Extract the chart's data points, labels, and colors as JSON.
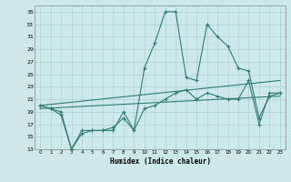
{
  "xlabel": "Humidex (Indice chaleur)",
  "bg_color": "#cce8e8",
  "grid_color": "#b0d0d0",
  "line_color": "#2e7d6e",
  "xlim": [
    -0.5,
    23.5
  ],
  "ylim": [
    13,
    36
  ],
  "yticks": [
    13,
    15,
    17,
    19,
    21,
    23,
    25,
    27,
    29,
    31,
    33,
    35
  ],
  "xticks": [
    0,
    1,
    2,
    3,
    4,
    5,
    6,
    7,
    8,
    9,
    10,
    11,
    12,
    13,
    14,
    15,
    16,
    17,
    18,
    19,
    20,
    21,
    22,
    23
  ],
  "series_main_x": [
    0,
    1,
    2,
    3,
    4,
    5,
    6,
    7,
    8,
    9,
    10,
    11,
    12,
    13,
    14,
    15,
    16,
    17,
    18,
    19,
    20,
    21,
    22,
    23
  ],
  "series_main_y": [
    20,
    19.5,
    18.5,
    13,
    16,
    16,
    16,
    16,
    19,
    16,
    26,
    30,
    35,
    35,
    24.5,
    24,
    33,
    31,
    29.5,
    26,
    25.5,
    18,
    21.5,
    22
  ],
  "series_low_x": [
    0,
    1,
    2,
    3,
    4,
    5,
    6,
    7,
    8,
    9,
    10,
    11,
    12,
    13,
    14,
    15,
    16,
    17,
    18,
    19,
    20,
    21,
    22,
    23
  ],
  "series_low_y": [
    20,
    19.5,
    19,
    13,
    15.5,
    16,
    16,
    16.5,
    18,
    16,
    19.5,
    20,
    21,
    22,
    22.5,
    21,
    22,
    21.5,
    21,
    21,
    24,
    17,
    22,
    22
  ],
  "trend1_x": [
    0,
    23
  ],
  "trend1_y": [
    20.0,
    24.0
  ],
  "trend2_x": [
    0,
    23
  ],
  "trend2_y": [
    19.5,
    21.5
  ]
}
